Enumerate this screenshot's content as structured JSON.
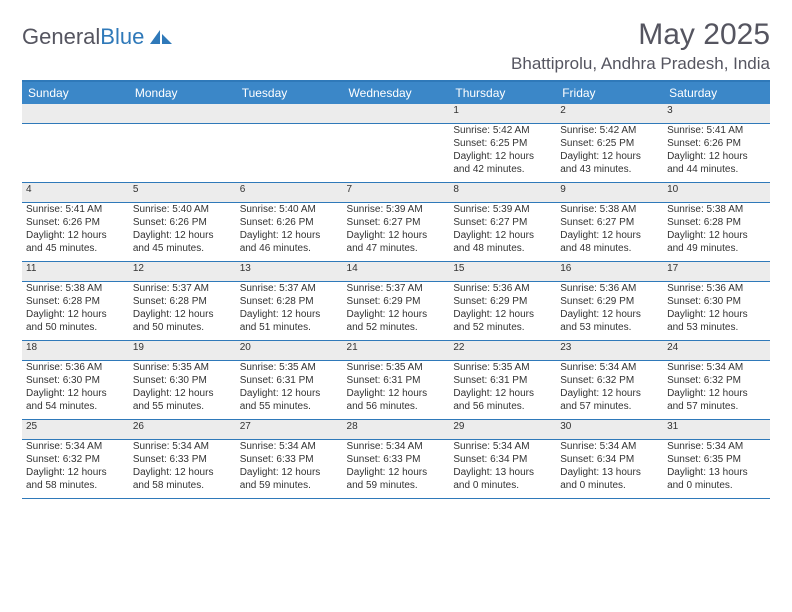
{
  "brand": {
    "part1": "General",
    "part2": "Blue"
  },
  "title": "May 2025",
  "location": "Bhattiprolu, Andhra Pradesh, India",
  "colors": {
    "header_bg": "#3b87c8",
    "header_text": "#ffffff",
    "rule": "#2f79b9",
    "daynum_bg": "#ececec",
    "body_text": "#333333",
    "title_text": "#555560"
  },
  "weekdays": [
    "Sunday",
    "Monday",
    "Tuesday",
    "Wednesday",
    "Thursday",
    "Friday",
    "Saturday"
  ],
  "weeks": [
    [
      null,
      null,
      null,
      null,
      {
        "n": "1",
        "sr": "5:42 AM",
        "ss": "6:25 PM",
        "dl": "12 hours and 42 minutes."
      },
      {
        "n": "2",
        "sr": "5:42 AM",
        "ss": "6:25 PM",
        "dl": "12 hours and 43 minutes."
      },
      {
        "n": "3",
        "sr": "5:41 AM",
        "ss": "6:26 PM",
        "dl": "12 hours and 44 minutes."
      }
    ],
    [
      {
        "n": "4",
        "sr": "5:41 AM",
        "ss": "6:26 PM",
        "dl": "12 hours and 45 minutes."
      },
      {
        "n": "5",
        "sr": "5:40 AM",
        "ss": "6:26 PM",
        "dl": "12 hours and 45 minutes."
      },
      {
        "n": "6",
        "sr": "5:40 AM",
        "ss": "6:26 PM",
        "dl": "12 hours and 46 minutes."
      },
      {
        "n": "7",
        "sr": "5:39 AM",
        "ss": "6:27 PM",
        "dl": "12 hours and 47 minutes."
      },
      {
        "n": "8",
        "sr": "5:39 AM",
        "ss": "6:27 PM",
        "dl": "12 hours and 48 minutes."
      },
      {
        "n": "9",
        "sr": "5:38 AM",
        "ss": "6:27 PM",
        "dl": "12 hours and 48 minutes."
      },
      {
        "n": "10",
        "sr": "5:38 AM",
        "ss": "6:28 PM",
        "dl": "12 hours and 49 minutes."
      }
    ],
    [
      {
        "n": "11",
        "sr": "5:38 AM",
        "ss": "6:28 PM",
        "dl": "12 hours and 50 minutes."
      },
      {
        "n": "12",
        "sr": "5:37 AM",
        "ss": "6:28 PM",
        "dl": "12 hours and 50 minutes."
      },
      {
        "n": "13",
        "sr": "5:37 AM",
        "ss": "6:28 PM",
        "dl": "12 hours and 51 minutes."
      },
      {
        "n": "14",
        "sr": "5:37 AM",
        "ss": "6:29 PM",
        "dl": "12 hours and 52 minutes."
      },
      {
        "n": "15",
        "sr": "5:36 AM",
        "ss": "6:29 PM",
        "dl": "12 hours and 52 minutes."
      },
      {
        "n": "16",
        "sr": "5:36 AM",
        "ss": "6:29 PM",
        "dl": "12 hours and 53 minutes."
      },
      {
        "n": "17",
        "sr": "5:36 AM",
        "ss": "6:30 PM",
        "dl": "12 hours and 53 minutes."
      }
    ],
    [
      {
        "n": "18",
        "sr": "5:36 AM",
        "ss": "6:30 PM",
        "dl": "12 hours and 54 minutes."
      },
      {
        "n": "19",
        "sr": "5:35 AM",
        "ss": "6:30 PM",
        "dl": "12 hours and 55 minutes."
      },
      {
        "n": "20",
        "sr": "5:35 AM",
        "ss": "6:31 PM",
        "dl": "12 hours and 55 minutes."
      },
      {
        "n": "21",
        "sr": "5:35 AM",
        "ss": "6:31 PM",
        "dl": "12 hours and 56 minutes."
      },
      {
        "n": "22",
        "sr": "5:35 AM",
        "ss": "6:31 PM",
        "dl": "12 hours and 56 minutes."
      },
      {
        "n": "23",
        "sr": "5:34 AM",
        "ss": "6:32 PM",
        "dl": "12 hours and 57 minutes."
      },
      {
        "n": "24",
        "sr": "5:34 AM",
        "ss": "6:32 PM",
        "dl": "12 hours and 57 minutes."
      }
    ],
    [
      {
        "n": "25",
        "sr": "5:34 AM",
        "ss": "6:32 PM",
        "dl": "12 hours and 58 minutes."
      },
      {
        "n": "26",
        "sr": "5:34 AM",
        "ss": "6:33 PM",
        "dl": "12 hours and 58 minutes."
      },
      {
        "n": "27",
        "sr": "5:34 AM",
        "ss": "6:33 PM",
        "dl": "12 hours and 59 minutes."
      },
      {
        "n": "28",
        "sr": "5:34 AM",
        "ss": "6:33 PM",
        "dl": "12 hours and 59 minutes."
      },
      {
        "n": "29",
        "sr": "5:34 AM",
        "ss": "6:34 PM",
        "dl": "13 hours and 0 minutes."
      },
      {
        "n": "30",
        "sr": "5:34 AM",
        "ss": "6:34 PM",
        "dl": "13 hours and 0 minutes."
      },
      {
        "n": "31",
        "sr": "5:34 AM",
        "ss": "6:35 PM",
        "dl": "13 hours and 0 minutes."
      }
    ]
  ],
  "labels": {
    "sunrise": "Sunrise:",
    "sunset": "Sunset:",
    "daylight": "Daylight:"
  }
}
